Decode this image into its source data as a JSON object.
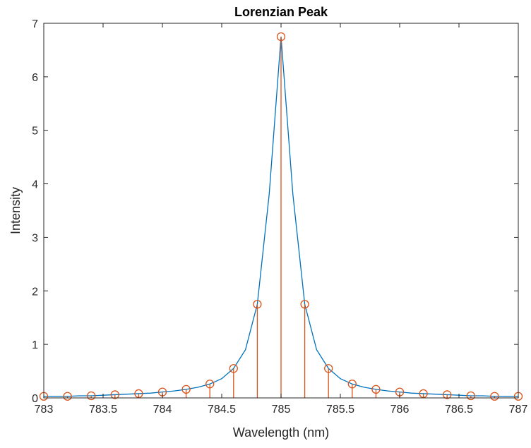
{
  "chart_data": {
    "type": "line",
    "title": "Lorenzian Peak",
    "xlabel": "Wavelength (nm)",
    "ylabel": "Intensity",
    "xlim": [
      783,
      787
    ],
    "ylim": [
      0,
      7
    ],
    "xticks": [
      783,
      783.5,
      784,
      784.5,
      785,
      785.5,
      786,
      786.5,
      787
    ],
    "xtick_labels": [
      "783",
      "783.5",
      "784",
      "784.5",
      "785",
      "785.5",
      "786",
      "786.5",
      "787"
    ],
    "yticks": [
      0,
      1,
      2,
      3,
      4,
      5,
      6,
      7
    ],
    "ytick_labels": [
      "0",
      "1",
      "2",
      "3",
      "4",
      "5",
      "6",
      "7"
    ],
    "grid": false,
    "series": [
      {
        "style": "line",
        "color": "#0072BD",
        "x": [
          783,
          783.1,
          783.2,
          783.3,
          783.4,
          783.5,
          783.6,
          783.7,
          783.8,
          783.9,
          784,
          784.1,
          784.2,
          784.3,
          784.4,
          784.5,
          784.6,
          784.7,
          784.8,
          784.9,
          785,
          785.1,
          785.2,
          785.3,
          785.4,
          785.5,
          785.6,
          785.7,
          785.8,
          785.9,
          786,
          786.1,
          786.2,
          786.3,
          786.4,
          786.5,
          786.6,
          786.7,
          786.8,
          786.9,
          787
        ],
        "y": [
          0.03,
          0.03,
          0.03,
          0.04,
          0.04,
          0.05,
          0.06,
          0.07,
          0.08,
          0.09,
          0.11,
          0.13,
          0.16,
          0.2,
          0.26,
          0.36,
          0.55,
          0.9,
          1.75,
          3.8,
          6.75,
          3.8,
          1.75,
          0.9,
          0.55,
          0.36,
          0.26,
          0.2,
          0.16,
          0.13,
          0.11,
          0.09,
          0.08,
          0.07,
          0.06,
          0.05,
          0.04,
          0.04,
          0.03,
          0.03,
          0.03
        ]
      },
      {
        "style": "stem",
        "marker": "circle",
        "color": "#D95319",
        "x": [
          783,
          783.2,
          783.4,
          783.6,
          783.8,
          784,
          784.2,
          784.4,
          784.6,
          784.8,
          785,
          785.2,
          785.4,
          785.6,
          785.8,
          786,
          786.2,
          786.4,
          786.6,
          786.8,
          787
        ],
        "y": [
          0.03,
          0.03,
          0.04,
          0.06,
          0.08,
          0.11,
          0.16,
          0.26,
          0.55,
          1.75,
          6.75,
          1.75,
          0.55,
          0.26,
          0.16,
          0.11,
          0.08,
          0.06,
          0.04,
          0.03,
          0.03
        ]
      }
    ]
  }
}
